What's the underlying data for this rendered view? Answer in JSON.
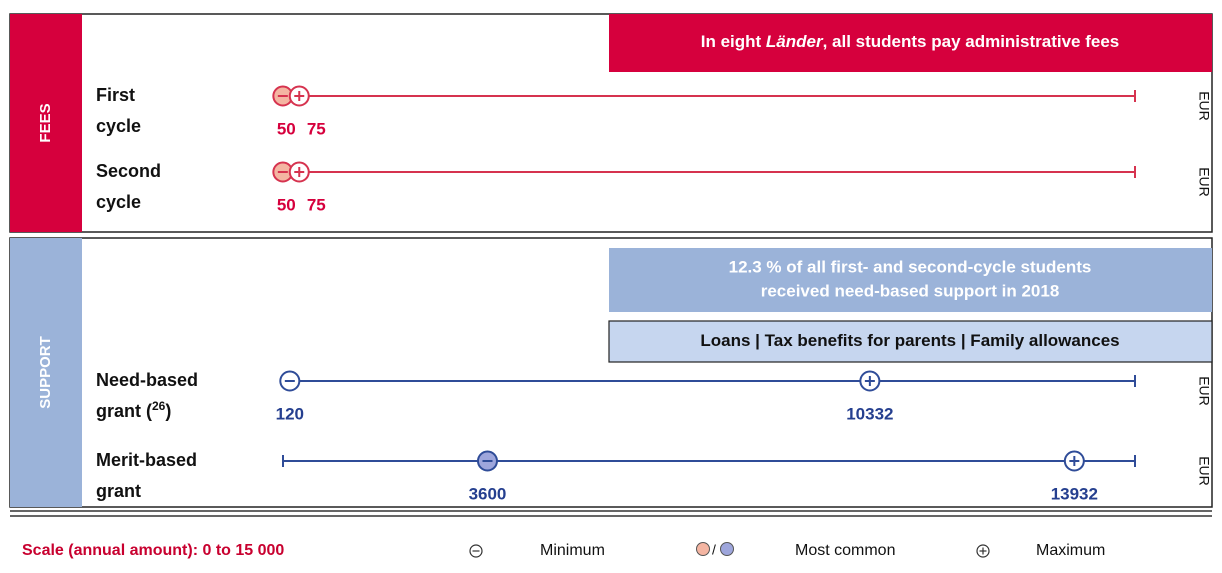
{
  "chart_data": {
    "type": "range",
    "xlim": [
      0,
      15000
    ],
    "unit": "EUR",
    "scale_label": "Scale (annual amount): 0 to 15 000",
    "legend": {
      "minimum": "Minimum",
      "most_common": "Most common",
      "separator": "/",
      "maximum": "Maximum"
    },
    "sections": [
      {
        "name": "FEES",
        "color": "#d6003d",
        "strip_color": "#d6003d",
        "line_color": "#d6334f",
        "text_color": "#d6003d",
        "fill": "#f4b5a2",
        "banners": [
          {
            "parts": [
              "In eight ",
              "Länder",
              ", all students pay administrative fees"
            ],
            "color": "#d6003d"
          }
        ],
        "rows": [
          {
            "label": [
              "First",
              "cycle"
            ],
            "min": 50,
            "most_common": 50,
            "max": 75
          },
          {
            "label": [
              "Second",
              "cycle"
            ],
            "min": 50,
            "most_common": 50,
            "max": 75
          }
        ]
      },
      {
        "name": "SUPPORT",
        "color": "#9bb3d9",
        "strip_color": "#9bb3d9",
        "line_color": "#2f4c98",
        "text_color": "#253f8f",
        "fill": "#9ea6dc",
        "banners": [
          {
            "parts": [
              "12.3 % of all first- and second-cycle students",
              "received need-based support in 2018"
            ],
            "color": "#9bb3d9"
          },
          {
            "parts": [
              "Loans | Tax benefits for parents | Family allowances"
            ],
            "color": "#c6d6ef"
          }
        ],
        "rows": [
          {
            "label": [
              "Need-based",
              "grant (",
              "26",
              ")"
            ],
            "min": 120,
            "max": 10332
          },
          {
            "label": [
              "Merit-based",
              "grant"
            ],
            "min": 3600,
            "most_common": 3600,
            "max": 13932,
            "line_from_zero": true
          }
        ]
      }
    ]
  }
}
